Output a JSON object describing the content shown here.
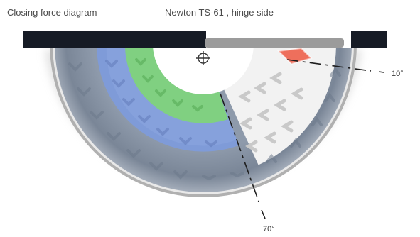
{
  "header": {
    "title": "Closing force diagram",
    "subtitle": "Newton TS-61 , hinge side"
  },
  "angles": {
    "small": "10°",
    "large": "70°"
  },
  "colors": {
    "outer_band": "#8a97a8",
    "blue_band": "#7d99d6",
    "green_band": "#7ccd7c",
    "white_band": "#f1f1f1",
    "red_marker": "#ec6d5a",
    "closer_arm": "#9a9a9a",
    "frame": "#151a24",
    "rim": "#a5a5a5"
  },
  "icons": {
    "pivot": "crosshair-icon"
  }
}
